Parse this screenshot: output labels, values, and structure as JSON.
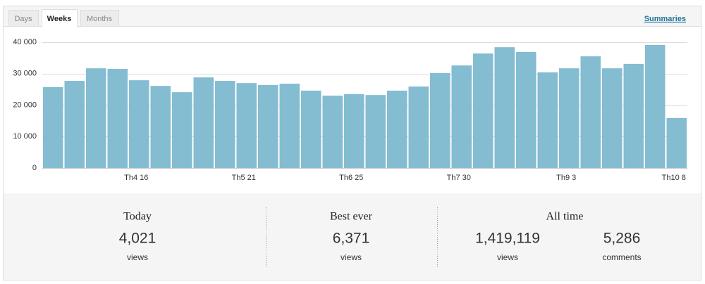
{
  "tabs": [
    "Days",
    "Weeks",
    "Months"
  ],
  "link": "Summaries",
  "chart_data": {
    "type": "bar",
    "categories": [
      null,
      null,
      null,
      null,
      "Th4 16",
      null,
      null,
      null,
      null,
      "Th5 21",
      null,
      null,
      null,
      null,
      "Th6 25",
      null,
      null,
      null,
      null,
      "Th7 30",
      null,
      null,
      null,
      null,
      "Th9 3",
      null,
      null,
      null,
      null,
      "Th10 8"
    ],
    "values": [
      25700,
      27700,
      31700,
      31500,
      27900,
      26100,
      24100,
      28800,
      27700,
      27000,
      26400,
      26800,
      24600,
      23000,
      23500,
      23200,
      24600,
      25900,
      30200,
      32600,
      36400,
      38400,
      36900,
      30400,
      31700,
      35500,
      31700,
      33100,
      39100,
      15900
    ],
    "color": "#84bcd1",
    "ylim": [
      0,
      40000
    ],
    "yticks": [
      0,
      {
        "value": 10000,
        "label": "10 000"
      },
      {
        "value": 20000,
        "label": "20 000"
      },
      {
        "value": 30000,
        "label": "30 000"
      },
      {
        "value": 40000,
        "label": "40 000"
      }
    ],
    "grid": true
  },
  "stats": [
    {
      "title": "Today",
      "items": [
        {
          "value": "4,021",
          "label": "views"
        }
      ]
    },
    {
      "title": "Best ever",
      "items": [
        {
          "value": "6,371",
          "label": "views"
        }
      ]
    },
    {
      "title": "All time",
      "items": [
        {
          "value": "1,419,119",
          "label": "views"
        },
        {
          "value": "5,286",
          "label": "comments"
        }
      ]
    }
  ]
}
